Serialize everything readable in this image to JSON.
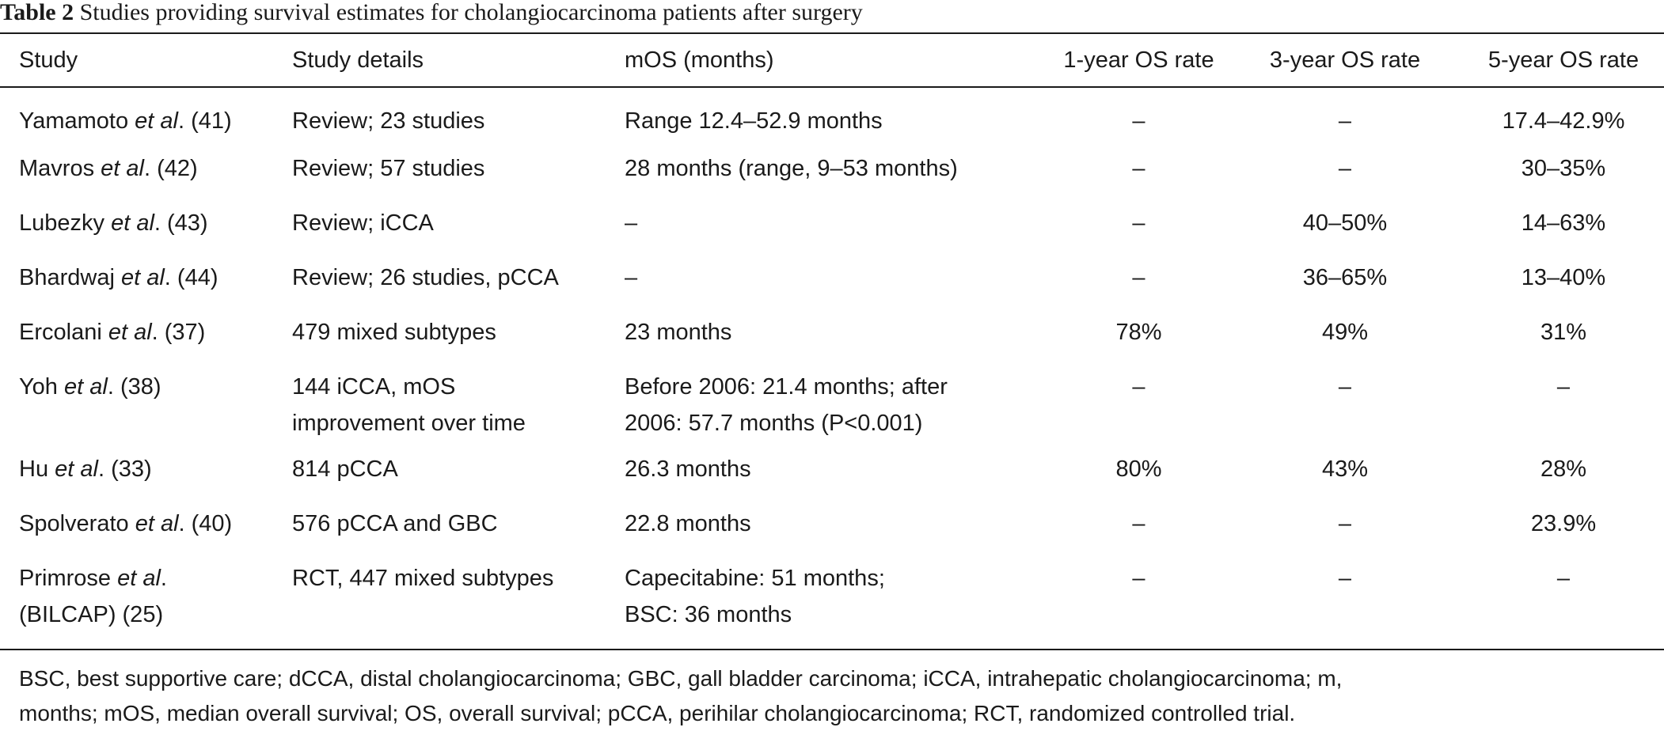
{
  "caption": {
    "label": "Table 2",
    "text": " Studies providing survival estimates for cholangiocarcinoma patients after surgery"
  },
  "headers": {
    "study": "Study",
    "details": "Study details",
    "mos": "mOS (months)",
    "os1": "1-year OS rate",
    "os3": "3-year OS rate",
    "os5": "5-year OS rate"
  },
  "etal": "et al",
  "rows": [
    {
      "author": "Yamamoto ",
      "ref": ". (41)",
      "details": [
        "Review; 23 studies"
      ],
      "mos": [
        "Range 12.4–52.9 months"
      ],
      "os1": "–",
      "os3": "–",
      "os5": "17.4–42.9%"
    },
    {
      "author": "Mavros ",
      "ref": ". (42)",
      "details": [
        "Review; 57 studies"
      ],
      "mos": [
        "28 months (range, 9–53 months)"
      ],
      "os1": "–",
      "os3": "–",
      "os5": "30–35%"
    },
    {
      "author": "Lubezky ",
      "ref": ". (43)",
      "details": [
        "Review; iCCA"
      ],
      "mos": [
        "–"
      ],
      "os1": "–",
      "os3": "40–50%",
      "os5": "14–63%"
    },
    {
      "author": "Bhardwaj ",
      "ref": ". (44)",
      "details": [
        "Review; 26 studies, pCCA"
      ],
      "mos": [
        "–"
      ],
      "os1": "–",
      "os3": "36–65%",
      "os5": "13–40%"
    },
    {
      "author": "Ercolani ",
      "ref": ". (37)",
      "details": [
        "479 mixed subtypes"
      ],
      "mos": [
        "23 months"
      ],
      "os1": "78%",
      "os3": "49%",
      "os5": "31%"
    },
    {
      "author": "Yoh ",
      "ref": ". (38)",
      "details": [
        "144 iCCA, mOS",
        "improvement over time"
      ],
      "mos": [
        "Before 2006: 21.4 months; after",
        "2006: 57.7 months (P<0.001)"
      ],
      "os1": "–",
      "os3": "–",
      "os5": "–"
    },
    {
      "author": "Hu ",
      "ref": ". (33)",
      "details": [
        "814 pCCA"
      ],
      "mos": [
        "26.3 months"
      ],
      "os1": "80%",
      "os3": "43%",
      "os5": "28%"
    },
    {
      "author": "Spolverato ",
      "ref": ". (40)",
      "details": [
        "576 pCCA and GBC"
      ],
      "mos": [
        "22.8 months"
      ],
      "os1": "–",
      "os3": "–",
      "os5": "23.9%"
    },
    {
      "author": "Primrose ",
      "ref": ".",
      "ref2": "(BILCAP) (25)",
      "details": [
        "RCT, 447 mixed subtypes"
      ],
      "mos": [
        "Capecitabine: 51 months;",
        "BSC: 36 months"
      ],
      "os1": "–",
      "os3": "–",
      "os5": "–"
    }
  ],
  "footnote": [
    "BSC, best supportive care; dCCA, distal cholangiocarcinoma; GBC, gall bladder carcinoma; iCCA, intrahepatic cholangiocarcinoma; m,",
    "months; mOS, median overall survival; OS, overall survival; pCCA, perihilar cholangiocarcinoma; RCT, randomized controlled trial."
  ]
}
